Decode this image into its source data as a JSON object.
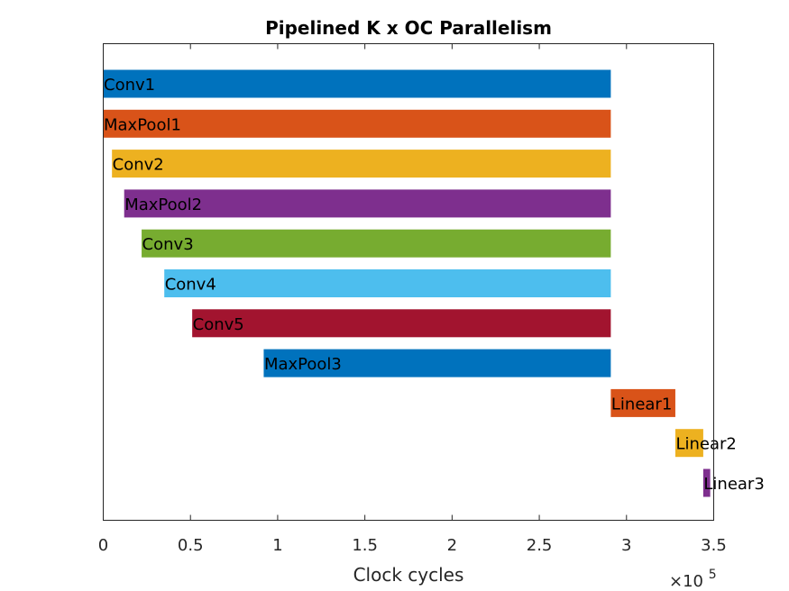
{
  "chart_data": {
    "type": "bar",
    "orientation": "horizontal",
    "title": "Pipelined K x OC Parallelism",
    "xlabel": "Clock cycles",
    "ylabel": "",
    "x_exponent_label": "×10",
    "x_exponent_power": "5",
    "xlim": [
      0,
      3.5
    ],
    "x_tick_values": [
      0,
      0.5,
      1,
      1.5,
      2,
      2.5,
      3,
      3.5
    ],
    "x_tick_labels": [
      "0",
      "0.5",
      "1",
      "1.5",
      "2",
      "2.5",
      "3",
      "3.5"
    ],
    "x_units_multiplier": 100000,
    "grid": false,
    "bars": [
      {
        "label": "Conv1",
        "start": 0,
        "end": 2.91,
        "color": "#0072BD"
      },
      {
        "label": "MaxPool1",
        "start": 0,
        "end": 2.91,
        "color": "#D95319"
      },
      {
        "label": "Conv2",
        "start": 0.05,
        "end": 2.91,
        "color": "#EDB120"
      },
      {
        "label": "MaxPool2",
        "start": 0.12,
        "end": 2.91,
        "color": "#7E2F8E"
      },
      {
        "label": "Conv3",
        "start": 0.22,
        "end": 2.91,
        "color": "#77AC30"
      },
      {
        "label": "Conv4",
        "start": 0.35,
        "end": 2.91,
        "color": "#4DBEEE"
      },
      {
        "label": "Conv5",
        "start": 0.51,
        "end": 2.91,
        "color": "#A2142F"
      },
      {
        "label": "MaxPool3",
        "start": 0.92,
        "end": 2.91,
        "color": "#0072BD"
      },
      {
        "label": "Linear1",
        "start": 2.91,
        "end": 3.28,
        "color": "#D95319"
      },
      {
        "label": "Linear2",
        "start": 3.28,
        "end": 3.44,
        "color": "#EDB120"
      },
      {
        "label": "Linear3",
        "start": 3.44,
        "end": 3.48,
        "color": "#7E2F8E"
      }
    ]
  }
}
